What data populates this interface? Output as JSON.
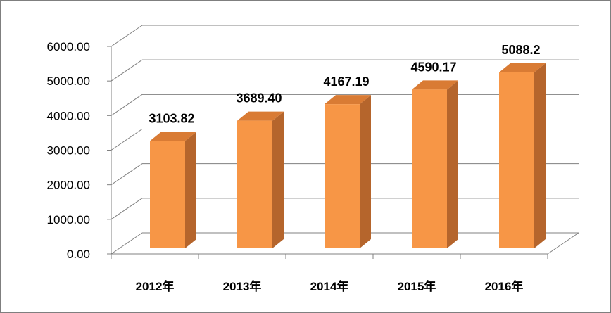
{
  "chart_data": {
    "type": "bar",
    "categories": [
      "2012年",
      "2013年",
      "2014年",
      "2015年",
      "2016年"
    ],
    "values": [
      3103.82,
      3689.4,
      4167.19,
      4590.17,
      5088.2
    ],
    "data_labels": [
      "3103.82",
      "3689.40",
      "4167.19",
      "4590.17",
      "5088.2"
    ],
    "title": "",
    "xlabel": "",
    "ylabel": "",
    "ylim": [
      0,
      6000
    ],
    "yticks": [
      0,
      1000,
      2000,
      3000,
      4000,
      5000,
      6000
    ],
    "ytick_labels": [
      "0.00",
      "1000.00",
      "2000.00",
      "3000.00",
      "4000.00",
      "5000.00",
      "6000.00"
    ],
    "grid": true,
    "legend": "none",
    "style": "3d-column",
    "colors": {
      "bar_front": "#F79646",
      "bar_side": "#B5652C",
      "bar_top": "#D97B34",
      "grid": "#808080",
      "wall": "#ffffff",
      "floor": "#ffffff"
    }
  }
}
